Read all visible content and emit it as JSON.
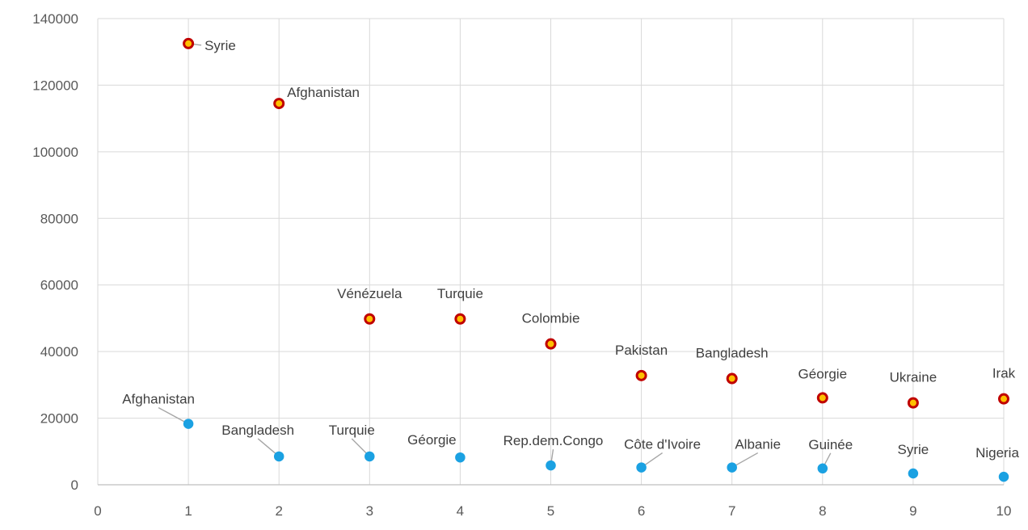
{
  "chart_data": {
    "type": "scatter",
    "title": "",
    "xlabel": "",
    "ylabel": "",
    "xlim": [
      0,
      10
    ],
    "ylim": [
      0,
      140000
    ],
    "x_ticks": [
      "0",
      "1",
      "2",
      "3",
      "4",
      "5",
      "6",
      "7",
      "8",
      "9",
      "10"
    ],
    "y_ticks": [
      "0",
      "20000",
      "40000",
      "60000",
      "80000",
      "100000",
      "120000",
      "140000"
    ],
    "grid": true,
    "series": [
      {
        "name": "red",
        "color": "#c00000",
        "fill": "#ffc000",
        "points": [
          {
            "x": 1,
            "y": 132500,
            "label": "Syrie"
          },
          {
            "x": 2,
            "y": 114500,
            "label": "Afghanistan"
          },
          {
            "x": 3,
            "y": 49800,
            "label": "Vénézuela"
          },
          {
            "x": 4,
            "y": 49800,
            "label": "Turquie"
          },
          {
            "x": 5,
            "y": 42300,
            "label": "Colombie"
          },
          {
            "x": 6,
            "y": 32800,
            "label": "Pakistan"
          },
          {
            "x": 7,
            "y": 31900,
            "label": "Bangladesh"
          },
          {
            "x": 8,
            "y": 26100,
            "label": "Géorgie"
          },
          {
            "x": 9,
            "y": 24600,
            "label": "Ukraine"
          },
          {
            "x": 10,
            "y": 25800,
            "label": "Irak"
          }
        ]
      },
      {
        "name": "blue",
        "color": "#1ba1e2",
        "fill": "#1ba1e2",
        "points": [
          {
            "x": 1,
            "y": 18300,
            "label": "Afghanistan"
          },
          {
            "x": 2,
            "y": 8500,
            "label": "Bangladesh"
          },
          {
            "x": 3,
            "y": 8500,
            "label": "Turquie"
          },
          {
            "x": 4,
            "y": 8200,
            "label": "Géorgie"
          },
          {
            "x": 5,
            "y": 5800,
            "label": "Rep.dem.Congo"
          },
          {
            "x": 6,
            "y": 5200,
            "label": "Côte d'Ivoire"
          },
          {
            "x": 7,
            "y": 5200,
            "label": "Albanie"
          },
          {
            "x": 8,
            "y": 4900,
            "label": "Guinée"
          },
          {
            "x": 9,
            "y": 3400,
            "label": "Syrie"
          },
          {
            "x": 10,
            "y": 2400,
            "label": "Nigeria"
          }
        ]
      }
    ]
  }
}
